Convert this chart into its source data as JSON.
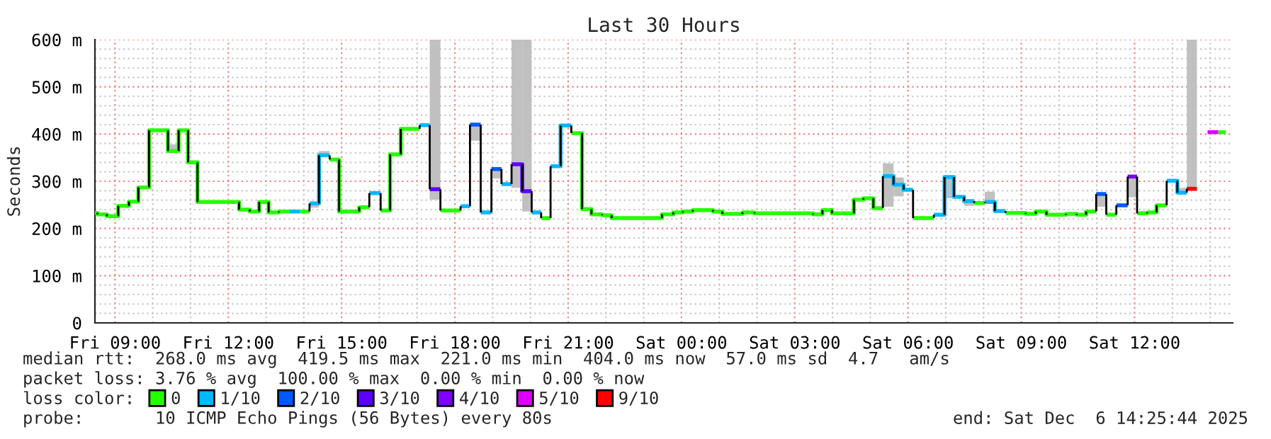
{
  "chart_data": {
    "type": "line",
    "title": "Last 30 Hours",
    "ylabel": "Seconds",
    "legend_title": "loss color:",
    "series": [
      {
        "type": "bar",
        "color": "#c0c0c0",
        "x": [
          "2025-12-05T10:24",
          "2025-12-05T14:09",
          "2025-12-05T14:24",
          "2025-12-05T17:20",
          "2025-12-05T18:24",
          "2025-12-05T18:58",
          "2025-12-05T19:30",
          "2025-12-05T19:47",
          "2025-12-06T05:20",
          "2025-12-06T05:37",
          "2025-12-06T06:58",
          "2025-12-06T07:29",
          "2025-12-06T08:02",
          "2025-12-06T10:59",
          "2025-12-06T11:49",
          "2025-12-06T13:08",
          "2025-12-06T13:23"
        ],
        "base": [
          364,
          244,
          355,
          261,
          386,
          306,
          286,
          236,
          246,
          268,
          264,
          248,
          254,
          246,
          266,
          271,
          284
        ],
        "values": [
          14,
          9,
          9,
          339,
          34,
          20,
          314,
          364,
          92,
          40,
          45,
          10,
          24,
          27,
          44,
          15,
          316
        ]
      },
      {
        "name": "0",
        "color": "#26ff00",
        "x": [
          "2025-12-05T08:28",
          "2025-12-05T08:32",
          "2025-12-05T08:32",
          "2025-12-05T08:47",
          "2025-12-05T08:47",
          "2025-12-05T09:05",
          "2025-12-05T09:05",
          "2025-12-05T09:22",
          "2025-12-05T09:22",
          "2025-12-05T09:37",
          "2025-12-05T09:37",
          "2025-12-05T09:54",
          "2025-12-05T09:54",
          "2025-12-05T10:24",
          "2025-12-05T10:24",
          "2025-12-05T10:41",
          "2025-12-05T10:41",
          "2025-12-05T10:56",
          "2025-12-05T10:56",
          "2025-12-05T11:11",
          "2025-12-05T11:11",
          "2025-12-05T12:17",
          "2025-12-05T12:17",
          "2025-12-05T12:34",
          "2025-12-05T12:34",
          "2025-12-05T12:49",
          "2025-12-05T12:49",
          "2025-12-05T13:04",
          "2025-12-05T13:04",
          "2025-12-05T13:20",
          "2025-12-05T13:20",
          "2025-12-05T13:37",
          "2025-12-05T13:54",
          "2025-12-05T14:09",
          "2025-12-05T14:41",
          "2025-12-05T14:56",
          "2025-12-05T14:56",
          "2025-12-05T15:28",
          "2025-12-05T15:28",
          "2025-12-05T15:44",
          "2025-12-05T16:02",
          "2025-12-05T16:17",
          "2025-12-05T16:17",
          "2025-12-05T16:34",
          "2025-12-05T16:34",
          "2025-12-05T17:04",
          "2025-12-05T17:37",
          "2025-12-05T18:09",
          "2025-12-05T20:17",
          "2025-12-05T20:32",
          "2025-12-05T21:05",
          "2025-12-05T21:22",
          "2025-12-05T21:22",
          "2025-12-05T21:37",
          "2025-12-05T21:37",
          "2025-12-05T21:54",
          "2025-12-05T21:54",
          "2025-12-05T22:09",
          "2025-12-05T22:09",
          "2025-12-05T23:29",
          "2025-12-05T23:29",
          "2025-12-05T23:47",
          "2025-12-05T23:47",
          "2025-12-06T00:02",
          "2025-12-06T00:02",
          "2025-12-06T00:18",
          "2025-12-06T00:18",
          "2025-12-06T00:50",
          "2025-12-06T00:50",
          "2025-12-06T01:05",
          "2025-12-06T01:05",
          "2025-12-06T01:37",
          "2025-12-06T01:37",
          "2025-12-06T01:56",
          "2025-12-06T01:56",
          "2025-12-06T03:29",
          "2025-12-06T03:29",
          "2025-12-06T03:44",
          "2025-12-06T03:44",
          "2025-12-06T03:59",
          "2025-12-06T03:59",
          "2025-12-06T04:34",
          "2025-12-06T04:34",
          "2025-12-06T04:49",
          "2025-12-06T04:49",
          "2025-12-06T05:05",
          "2025-12-06T05:05",
          "2025-12-06T05:20",
          "2025-12-06T06:08",
          "2025-12-06T06:41",
          "2025-12-06T07:45",
          "2025-12-06T08:02",
          "2025-12-06T08:35",
          "2025-12-06T09:07",
          "2025-12-06T09:07",
          "2025-12-06T09:23",
          "2025-12-06T09:23",
          "2025-12-06T09:40",
          "2025-12-06T09:40",
          "2025-12-06T10:11",
          "2025-12-06T10:11",
          "2025-12-06T10:28",
          "2025-12-06T10:28",
          "2025-12-06T10:43",
          "2025-12-06T10:43",
          "2025-12-06T10:59",
          "2025-12-06T11:15",
          "2025-12-06T11:31",
          "2025-12-06T12:04",
          "2025-12-06T12:20",
          "2025-12-06T12:20",
          "2025-12-06T12:35",
          "2025-12-06T12:35",
          "2025-12-06T12:51",
          "2025-12-06T14:13",
          "2025-12-06T14:25"
        ],
        "values": [
          233,
          233,
          230,
          230,
          226,
          226,
          248,
          248,
          257,
          257,
          287,
          287,
          408,
          408,
          364,
          364,
          408,
          408,
          340,
          340,
          256,
          256,
          240,
          240,
          236,
          236,
          256,
          256,
          234,
          234,
          236,
          236,
          236,
          236,
          346,
          346,
          236,
          236,
          245,
          245,
          238,
          238,
          357,
          357,
          411,
          411,
          238,
          238,
          222,
          222,
          402,
          402,
          241,
          241,
          230,
          230,
          228,
          228,
          222,
          222,
          230,
          230,
          234,
          234,
          236,
          236,
          239,
          239,
          236,
          236,
          231,
          231,
          234,
          234,
          232,
          232,
          230,
          230,
          239,
          239,
          232,
          232,
          261,
          261,
          264,
          264,
          243,
          243,
          222,
          222,
          254,
          254,
          233,
          233,
          231,
          231,
          236,
          236,
          229,
          229,
          231,
          231,
          229,
          229,
          236,
          236,
          229,
          229,
          232,
          232,
          234,
          234,
          249,
          249,
          404,
          404
        ]
      },
      {
        "name": "1/10",
        "color": "#00b8ff",
        "x": [
          "2025-12-05T13:37",
          "2025-12-05T13:54",
          "2025-12-05T14:09",
          "2025-12-05T14:24",
          "2025-12-05T14:24",
          "2025-12-05T14:41",
          "2025-12-05T15:44",
          "2025-12-05T16:02",
          "2025-12-05T17:04",
          "2025-12-05T17:20",
          "2025-12-05T18:09",
          "2025-12-05T18:24",
          "2025-12-05T18:41",
          "2025-12-05T18:58",
          "2025-12-05T19:14",
          "2025-12-05T19:30",
          "2025-12-05T20:02",
          "2025-12-05T20:17",
          "2025-12-05T20:32",
          "2025-12-05T20:48",
          "2025-12-05T20:48",
          "2025-12-05T21:05",
          "2025-12-06T05:20",
          "2025-12-06T05:37",
          "2025-12-06T05:37",
          "2025-12-06T05:53",
          "2025-12-06T05:53",
          "2025-12-06T06:08",
          "2025-12-06T06:41",
          "2025-12-06T06:58",
          "2025-12-06T06:58",
          "2025-12-06T07:13",
          "2025-12-06T07:13",
          "2025-12-06T07:29",
          "2025-12-06T07:29",
          "2025-12-06T07:45",
          "2025-12-06T08:02",
          "2025-12-06T08:18",
          "2025-12-06T08:18",
          "2025-12-06T08:35",
          "2025-12-06T12:51",
          "2025-12-06T13:08",
          "2025-12-06T13:08",
          "2025-12-06T13:23"
        ],
        "values": [
          236,
          236,
          253,
          253,
          355,
          355,
          275,
          275,
          419,
          419,
          247,
          247,
          234,
          234,
          294,
          294,
          234,
          234,
          332,
          332,
          418,
          418,
          311,
          311,
          293,
          293,
          282,
          282,
          229,
          229,
          309,
          309,
          267,
          267,
          258,
          258,
          256,
          256,
          237,
          237,
          301,
          301,
          276,
          276
        ]
      },
      {
        "name": "2/10",
        "color": "#0059ff",
        "x": [
          "2025-12-05T18:24",
          "2025-12-05T18:41",
          "2025-12-05T18:58",
          "2025-12-05T19:14",
          "2025-12-06T10:59",
          "2025-12-06T11:15",
          "2025-12-06T11:31",
          "2025-12-06T11:49"
        ],
        "values": [
          420,
          420,
          326,
          326,
          273,
          273,
          249,
          249
        ]
      },
      {
        "name": "3/10",
        "color": "#5e00ff",
        "x": [
          "2025-12-05T17:20",
          "2025-12-05T17:37",
          "2025-12-05T19:30",
          "2025-12-05T19:47",
          "2025-12-05T19:47",
          "2025-12-05T20:02"
        ],
        "values": [
          283,
          283,
          336,
          336,
          279,
          279
        ]
      },
      {
        "name": "4/10",
        "color": "#7e00ff",
        "x": [
          "2025-12-06T11:49",
          "2025-12-06T12:04"
        ],
        "values": [
          310,
          310
        ]
      },
      {
        "name": "5/10",
        "color": "#dd00ff",
        "x": [
          "2025-12-06T13:56",
          "2025-12-06T14:13"
        ],
        "values": [
          404,
          404
        ]
      },
      {
        "name": "9/10",
        "color": "#ff0000",
        "x": [
          "2025-12-06T13:23",
          "2025-12-06T13:39"
        ],
        "values": [
          284,
          284
        ]
      }
    ],
    "xlim": [
      "2025-12-05T08:28",
      "2025-12-06T14:36"
    ],
    "xticks": [
      {
        "value": "2025-12-05T09:00",
        "label": "Fri 09:00"
      },
      {
        "value": "2025-12-05T12:00",
        "label": "Fri 12:00"
      },
      {
        "value": "2025-12-05T15:00",
        "label": "Fri 15:00"
      },
      {
        "value": "2025-12-05T18:00",
        "label": "Fri 18:00"
      },
      {
        "value": "2025-12-05T21:00",
        "label": "Fri 21:00"
      },
      {
        "value": "2025-12-06T00:00",
        "label": "Sat 00:00"
      },
      {
        "value": "2025-12-06T03:00",
        "label": "Sat 03:00"
      },
      {
        "value": "2025-12-06T06:00",
        "label": "Sat 06:00"
      },
      {
        "value": "2025-12-06T09:00",
        "label": "Sat 09:00"
      },
      {
        "value": "2025-12-06T12:00",
        "label": "Sat 12:00"
      }
    ],
    "ylim": [
      0,
      600
    ],
    "yticks": [
      0,
      {
        "value": 100,
        "label": "100 m"
      },
      {
        "value": 200,
        "label": "200 m"
      },
      {
        "value": 300,
        "label": "300 m"
      },
      {
        "value": 400,
        "label": "400 m"
      },
      {
        "value": 500,
        "label": "500 m"
      },
      {
        "value": 600,
        "label": "600 m"
      }
    ],
    "grid": true,
    "legend": "bottom",
    "annotations": [
      "median rtt:  268.0 ms avg  419.5 ms max  221.0 ms min  404.0 ms now  57.0 ms sd  4.7   am/s",
      "packet loss: 3.76 % avg  100.00 % max  0.00 % min  0.00 % now",
      "probe:       10 ICMP Echo Pings (56 Bytes) every 80s",
      "end: Sat Dec  6 14:25:44 2025"
    ]
  }
}
